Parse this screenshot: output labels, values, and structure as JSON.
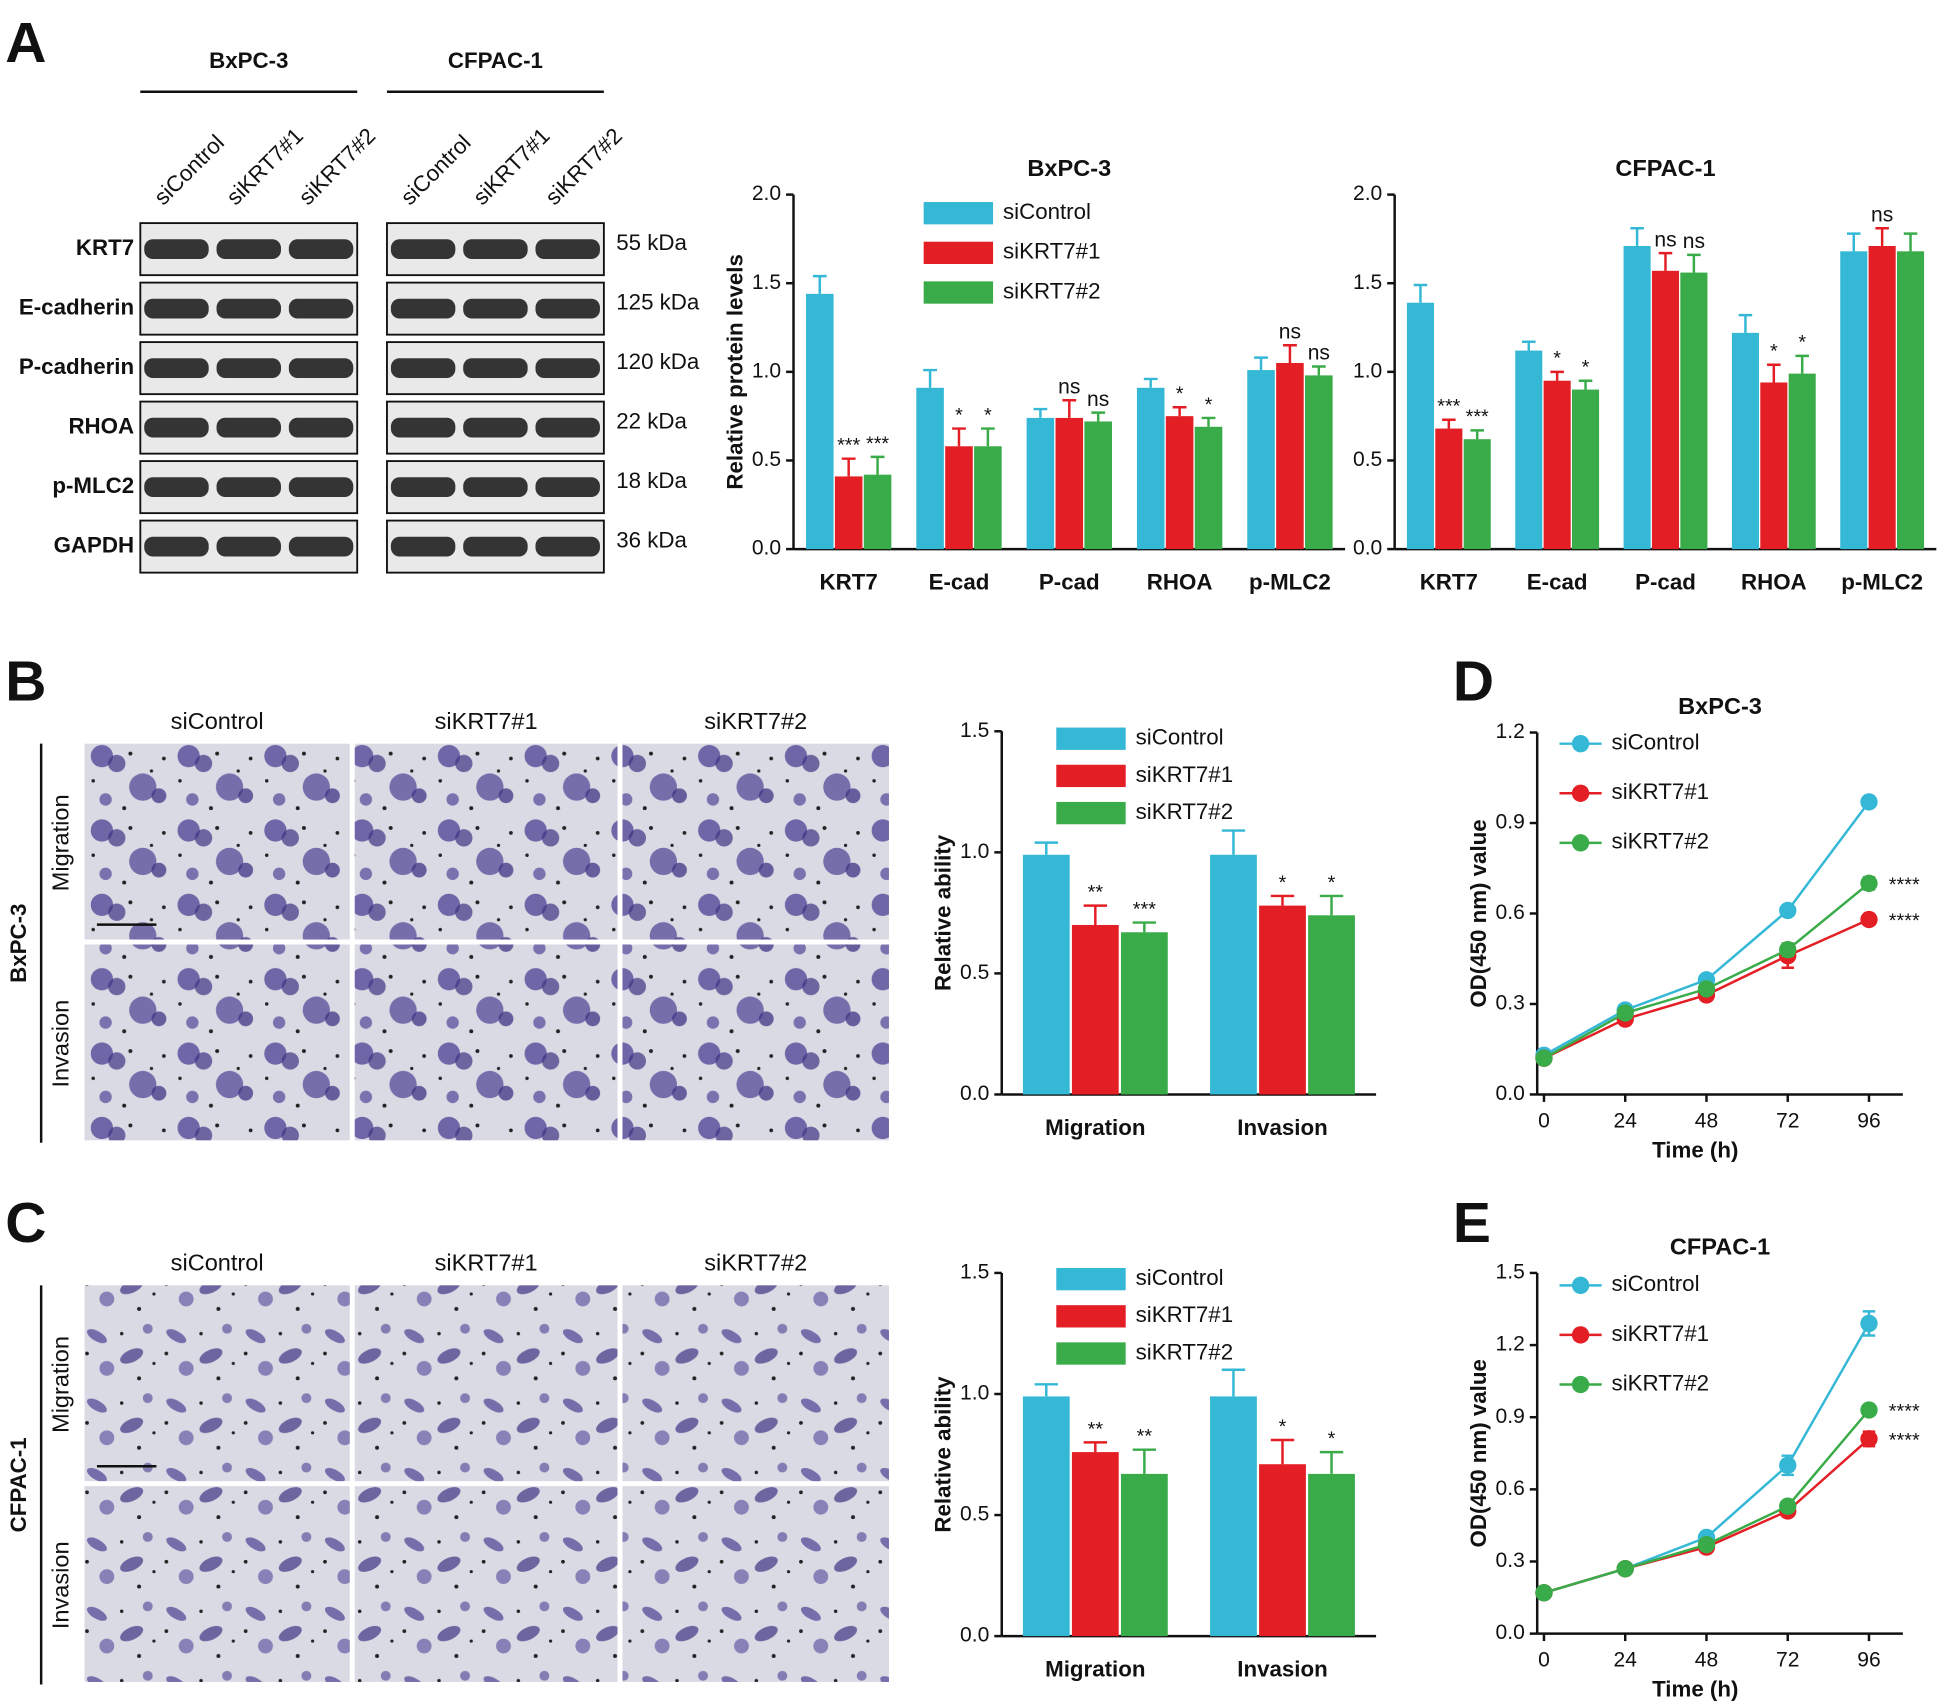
{
  "panels": [
    "A",
    "B",
    "C",
    "D",
    "E"
  ],
  "western_blot": {
    "cell_lines": [
      "BxPC-3",
      "CFPAC-1"
    ],
    "lanes": [
      "siControl",
      "siKRT7#1",
      "siKRT7#2"
    ],
    "proteins": [
      "KRT7",
      "E-cadherin",
      "P-cadherin",
      "RHOA",
      "p-MLC2",
      "GAPDH"
    ],
    "sizes": [
      "55 kDa",
      "125 kDa",
      "120 kDa",
      "22 kDa",
      "18 kDa",
      "36 kDa"
    ]
  },
  "transwell": {
    "cell_lines": [
      "BxPC-3",
      "CFPAC-1"
    ],
    "conditions": [
      "siControl",
      "siKRT7#1",
      "siKRT7#2"
    ],
    "assays": [
      "Migration",
      "Invasion"
    ]
  },
  "chart_data": [
    {
      "type": "bar",
      "title": "BxPC-3",
      "ylabel": "Relative protein levels",
      "categories": [
        "KRT7",
        "E-cad",
        "P-cad",
        "RHOA",
        "p-MLC2"
      ],
      "series": [
        {
          "name": "siControl",
          "color": "#35b8d6",
          "values": [
            1.44,
            0.91,
            0.74,
            0.91,
            1.01
          ],
          "errors": [
            0.1,
            0.1,
            0.05,
            0.05,
            0.07
          ]
        },
        {
          "name": "siKRT7#1",
          "color": "#e41e25",
          "values": [
            0.41,
            0.58,
            0.74,
            0.75,
            1.05
          ],
          "errors": [
            0.1,
            0.1,
            0.1,
            0.05,
            0.1
          ],
          "annotations": [
            "***",
            "*",
            "ns",
            "*",
            "ns"
          ]
        },
        {
          "name": "siKRT7#2",
          "color": "#3aab49",
          "values": [
            0.42,
            0.58,
            0.72,
            0.69,
            0.98
          ],
          "errors": [
            0.1,
            0.1,
            0.05,
            0.05,
            0.05
          ],
          "annotations": [
            "***",
            "*",
            "ns",
            "*",
            "ns"
          ]
        }
      ],
      "ylim": [
        0,
        2
      ],
      "yticks": [
        {
          "value": 0,
          "label": "0.0"
        },
        0.5,
        {
          "value": 1,
          "label": "1.0"
        },
        1.5,
        {
          "value": 2,
          "label": "2.0"
        }
      ],
      "legend": "upper center"
    },
    {
      "type": "bar",
      "title": "CFPAC-1",
      "categories": [
        "KRT7",
        "E-cad",
        "P-cad",
        "RHOA",
        "p-MLC2"
      ],
      "series": [
        {
          "color": "#35b8d6",
          "values": [
            1.39,
            1.12,
            1.71,
            1.22,
            1.68
          ],
          "errors": [
            0.1,
            0.05,
            0.1,
            0.1,
            0.1
          ]
        },
        {
          "color": "#e41e25",
          "values": [
            0.68,
            0.95,
            1.57,
            0.94,
            1.71
          ],
          "errors": [
            0.05,
            0.05,
            0.1,
            0.1,
            0.1
          ],
          "annotations": [
            "***",
            "*",
            "ns",
            "*",
            "ns"
          ]
        },
        {
          "color": "#3aab49",
          "values": [
            0.62,
            0.9,
            1.56,
            0.99,
            1.68
          ],
          "errors": [
            0.05,
            0.05,
            0.1,
            0.1,
            0.1
          ],
          "annotations": [
            "***",
            "*",
            "ns",
            "*",
            null
          ]
        }
      ],
      "ylim": [
        0,
        2
      ],
      "yticks": [
        {
          "value": 0,
          "label": "0.0"
        },
        0.5,
        {
          "value": 1,
          "label": "1.0"
        },
        1.5,
        {
          "value": 2,
          "label": "2.0"
        }
      ]
    },
    {
      "type": "bar",
      "ylabel": "Relative ability",
      "categories": [
        "Migration",
        "Invasion"
      ],
      "series": [
        {
          "name": "siControl",
          "color": "#35b8d6",
          "values": [
            0.99,
            0.99
          ],
          "errors": [
            0.05,
            0.1
          ]
        },
        {
          "name": "siKRT7#1",
          "color": "#e41e25",
          "values": [
            0.7,
            0.78
          ],
          "errors": [
            0.08,
            0.04
          ],
          "annotations": [
            "**",
            "*"
          ]
        },
        {
          "name": "siKRT7#2",
          "color": "#3aab49",
          "values": [
            0.67,
            0.74
          ],
          "errors": [
            0.04,
            0.08
          ],
          "annotations": [
            "***",
            "*"
          ]
        }
      ],
      "ylim": [
        0,
        1.5
      ],
      "yticks": [
        {
          "value": 0,
          "label": "0.0"
        },
        0.5,
        {
          "value": 1,
          "label": "1.0"
        },
        1.5
      ],
      "legend": "upper right"
    },
    {
      "type": "bar",
      "ylabel": "Relative ability",
      "categories": [
        "Migration",
        "Invasion"
      ],
      "series": [
        {
          "name": "siControl",
          "color": "#35b8d6",
          "values": [
            0.99,
            0.99
          ],
          "errors": [
            0.05,
            0.11
          ]
        },
        {
          "name": "siKRT7#1",
          "color": "#e41e25",
          "values": [
            0.76,
            0.71
          ],
          "errors": [
            0.04,
            0.1
          ],
          "annotations": [
            "**",
            "*"
          ]
        },
        {
          "name": "siKRT7#2",
          "color": "#3aab49",
          "values": [
            0.67,
            0.67
          ],
          "errors": [
            0.1,
            0.09
          ],
          "annotations": [
            "**",
            "*"
          ]
        }
      ],
      "ylim": [
        0,
        1.5
      ],
      "yticks": [
        {
          "value": 0,
          "label": "0.0"
        },
        0.5,
        {
          "value": 1,
          "label": "1.0"
        },
        1.5
      ],
      "legend": "upper right"
    },
    {
      "type": "line",
      "title": "BxPC-3",
      "xlabel": "Time (h)",
      "ylabel": "OD(450 nm) value",
      "x": [
        0,
        24,
        48,
        72,
        96
      ],
      "xlim": [
        -2,
        106
      ],
      "xticks": [
        0,
        24,
        48,
        72,
        96
      ],
      "series": [
        {
          "name": "siControl",
          "color": "#35b8d6",
          "values": [
            0.13,
            0.28,
            0.38,
            0.61,
            0.97
          ],
          "errors": [
            0.01,
            0.01,
            0.01,
            0.01,
            0.01
          ]
        },
        {
          "name": "siKRT7#1",
          "color": "#e41e25",
          "values": [
            0.12,
            0.25,
            0.33,
            0.46,
            0.58
          ],
          "errors": [
            0.01,
            0.01,
            0.01,
            0.04,
            0.01
          ],
          "annotation": "****"
        },
        {
          "name": "siKRT7#2",
          "color": "#3aab49",
          "values": [
            0.12,
            0.27,
            0.35,
            0.48,
            0.7
          ],
          "errors": [
            0.01,
            0.01,
            0.01,
            0.02,
            0.02
          ],
          "annotation": "****"
        }
      ],
      "ylim": [
        0,
        1.2
      ],
      "yticks": [
        {
          "value": 0,
          "label": "0.0"
        },
        0.3,
        0.6,
        0.9,
        1.2
      ],
      "legend": "upper left"
    },
    {
      "type": "line",
      "title": "CFPAC-1",
      "xlabel": "Time (h)",
      "ylabel": "OD(450 nm) value",
      "x": [
        0,
        24,
        48,
        72,
        96
      ],
      "xlim": [
        -2,
        106
      ],
      "xticks": [
        0,
        24,
        48,
        72,
        96
      ],
      "series": [
        {
          "name": "siControl",
          "color": "#35b8d6",
          "values": [
            0.17,
            0.27,
            0.4,
            0.7,
            1.29
          ],
          "errors": [
            0.01,
            0.01,
            0.02,
            0.04,
            0.05
          ]
        },
        {
          "name": "siKRT7#1",
          "color": "#e41e25",
          "values": [
            0.17,
            0.27,
            0.36,
            0.51,
            0.81
          ],
          "errors": [
            0.01,
            0.01,
            0.01,
            0.02,
            0.03
          ],
          "annotation": "****"
        },
        {
          "name": "siKRT7#2",
          "color": "#3aab49",
          "values": [
            0.17,
            0.27,
            0.37,
            0.53,
            0.93
          ],
          "errors": [
            0.01,
            0.01,
            0.01,
            0.01,
            0.02
          ],
          "annotation": "****"
        }
      ],
      "ylim": [
        0,
        1.5
      ],
      "yticks": [
        {
          "value": 0,
          "label": "0.0"
        },
        0.3,
        0.6,
        0.9,
        1.2,
        1.5
      ],
      "legend": "upper left"
    }
  ]
}
